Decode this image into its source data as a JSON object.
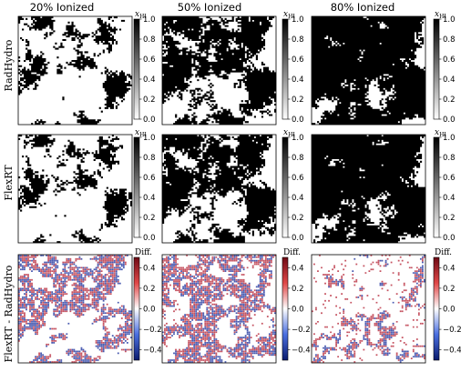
{
  "figure": {
    "column_titles": [
      "20% Ionized",
      "50% Ionized",
      "80% Ionized"
    ],
    "row_labels": [
      "RadHydro",
      "FlexRT",
      "FlexRT - RadHydro"
    ],
    "colorbar_titles": {
      "hi_base": "x",
      "hi_sub": "HI",
      "diff": "Diff."
    },
    "colorbar_ticks": {
      "hi": [
        "1.0",
        "0.8",
        "0.6",
        "0.4",
        "0.2",
        "0.0"
      ],
      "diff": [
        "0.4",
        "0.2",
        "0.0",
        "−0.2",
        "−0.4"
      ]
    },
    "colors": {
      "neutral": "#000000",
      "ionized": "#ffffff",
      "diff_positive": "#b2182b",
      "diff_negative": "#1a2f9c"
    }
  },
  "chart_data": [
    {
      "type": "heatmap",
      "row": "RadHydro",
      "column": "20% Ionized",
      "quantity": "x_HI",
      "colorbar_range": [
        0.0,
        1.0
      ],
      "ionized_fraction": 0.2
    },
    {
      "type": "heatmap",
      "row": "RadHydro",
      "column": "50% Ionized",
      "quantity": "x_HI",
      "colorbar_range": [
        0.0,
        1.0
      ],
      "ionized_fraction": 0.5
    },
    {
      "type": "heatmap",
      "row": "RadHydro",
      "column": "80% Ionized",
      "quantity": "x_HI",
      "colorbar_range": [
        0.0,
        1.0
      ],
      "ionized_fraction": 0.8
    },
    {
      "type": "heatmap",
      "row": "FlexRT",
      "column": "20% Ionized",
      "quantity": "x_HI",
      "colorbar_range": [
        0.0,
        1.0
      ],
      "ionized_fraction": 0.2
    },
    {
      "type": "heatmap",
      "row": "FlexRT",
      "column": "50% Ionized",
      "quantity": "x_HI",
      "colorbar_range": [
        0.0,
        1.0
      ],
      "ionized_fraction": 0.5
    },
    {
      "type": "heatmap",
      "row": "FlexRT",
      "column": "80% Ionized",
      "quantity": "x_HI",
      "colorbar_range": [
        0.0,
        1.0
      ],
      "ionized_fraction": 0.8
    },
    {
      "type": "heatmap",
      "row": "FlexRT - RadHydro",
      "column": "20% Ionized",
      "quantity": "Diff.",
      "colorbar_range": [
        -0.5,
        0.5
      ],
      "ionized_fraction": 0.2
    },
    {
      "type": "heatmap",
      "row": "FlexRT - RadHydro",
      "column": "50% Ionized",
      "quantity": "Diff.",
      "colorbar_range": [
        -0.5,
        0.5
      ],
      "ionized_fraction": 0.5
    },
    {
      "type": "heatmap",
      "row": "FlexRT - RadHydro",
      "column": "80% Ionized",
      "quantity": "Diff.",
      "colorbar_range": [
        -0.5,
        0.5
      ],
      "ionized_fraction": 0.8
    }
  ]
}
